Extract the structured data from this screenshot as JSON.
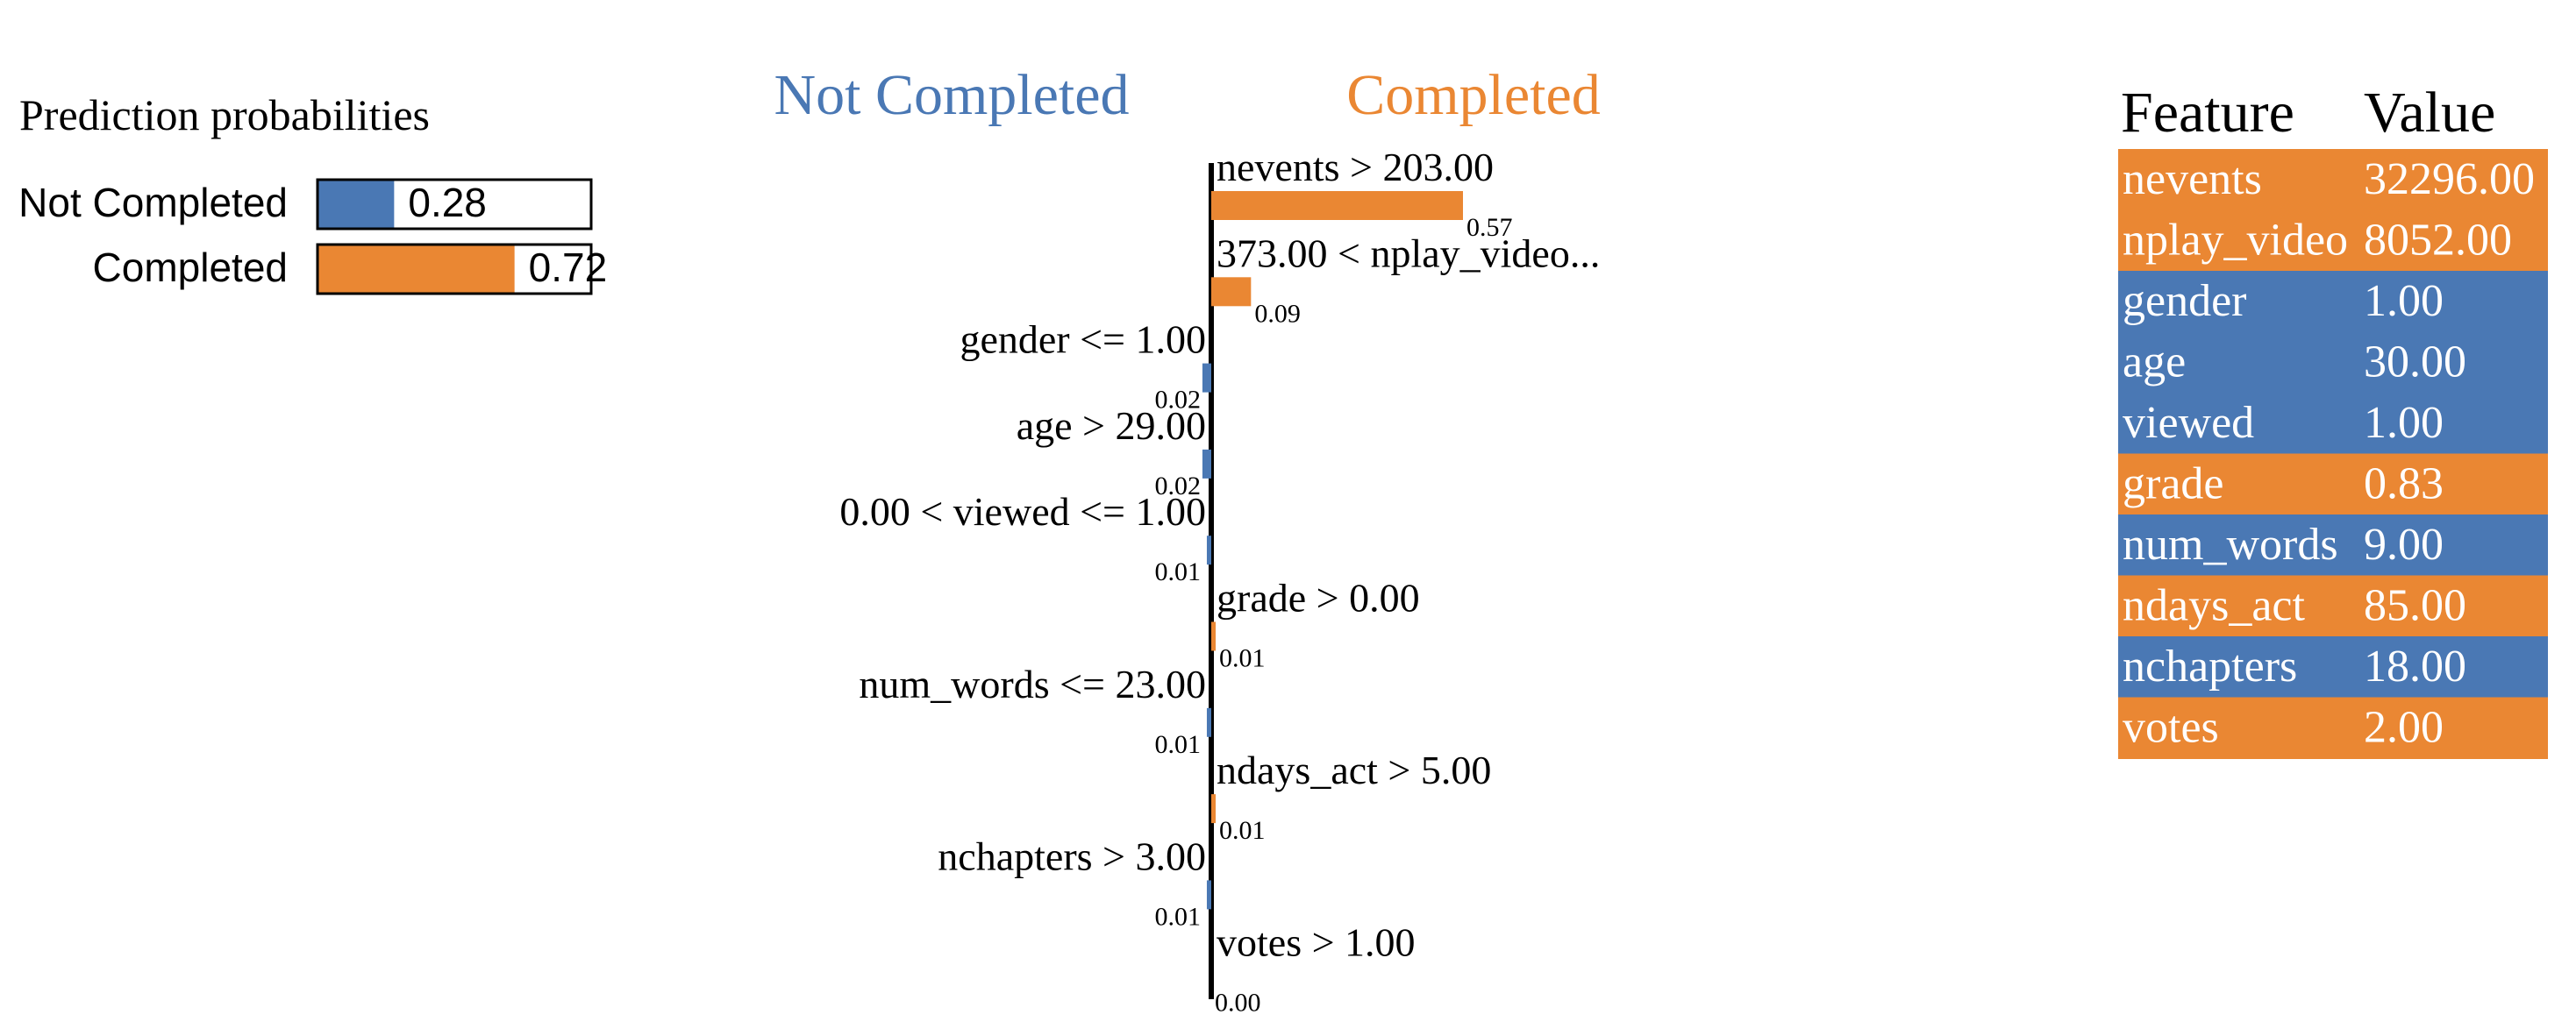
{
  "colors": {
    "not_completed": "#4a78b4",
    "completed": "#ea8733",
    "text": "#000000",
    "table_text": "#ffffff"
  },
  "chart_data": [
    {
      "type": "bar",
      "orientation": "horizontal",
      "title": "Prediction probabilities",
      "categories": [
        "Not Completed",
        "Completed"
      ],
      "values": [
        0.28,
        0.72
      ],
      "value_labels": [
        "0.28",
        "0.72"
      ],
      "xlim": [
        0,
        1
      ]
    },
    {
      "type": "bar",
      "orientation": "horizontal",
      "title_left": "Not Completed",
      "title_right": "Completed",
      "xlim": [
        -0.6,
        0.6
      ],
      "features": [
        {
          "label": "nevents > 203.00",
          "value": 0.57,
          "value_label": "0.57",
          "class": "completed"
        },
        {
          "label": "373.00 < nplay_video...",
          "value": 0.09,
          "value_label": "0.09",
          "class": "completed"
        },
        {
          "label": "gender <= 1.00",
          "value": -0.02,
          "value_label": "0.02",
          "class": "not_completed"
        },
        {
          "label": "age > 29.00",
          "value": -0.02,
          "value_label": "0.02",
          "class": "not_completed"
        },
        {
          "label": "0.00 < viewed <= 1.00",
          "value": -0.01,
          "value_label": "0.01",
          "class": "not_completed"
        },
        {
          "label": "grade > 0.00",
          "value": 0.01,
          "value_label": "0.01",
          "class": "completed"
        },
        {
          "label": "num_words <= 23.00",
          "value": -0.01,
          "value_label": "0.01",
          "class": "not_completed"
        },
        {
          "label": "ndays_act > 5.00",
          "value": 0.01,
          "value_label": "0.01",
          "class": "completed"
        },
        {
          "label": "nchapters > 3.00",
          "value": -0.01,
          "value_label": "0.01",
          "class": "not_completed"
        },
        {
          "label": "votes > 1.00",
          "value": 0.0,
          "value_label": "0.00",
          "class": "completed"
        }
      ]
    },
    {
      "type": "table",
      "headers": [
        "Feature",
        "Value"
      ],
      "rows": [
        {
          "feature": "nevents",
          "value": "32296.00",
          "class": "completed"
        },
        {
          "feature": "nplay_video",
          "value": "8052.00",
          "class": "completed"
        },
        {
          "feature": "gender",
          "value": "1.00",
          "class": "not_completed"
        },
        {
          "feature": "age",
          "value": "30.00",
          "class": "not_completed"
        },
        {
          "feature": "viewed",
          "value": "1.00",
          "class": "not_completed"
        },
        {
          "feature": "grade",
          "value": "0.83",
          "class": "completed"
        },
        {
          "feature": "num_words",
          "value": "9.00",
          "class": "not_completed"
        },
        {
          "feature": "ndays_act",
          "value": "85.00",
          "class": "completed"
        },
        {
          "feature": "nchapters",
          "value": "18.00",
          "class": "not_completed"
        },
        {
          "feature": "votes",
          "value": "2.00",
          "class": "completed"
        }
      ]
    }
  ]
}
